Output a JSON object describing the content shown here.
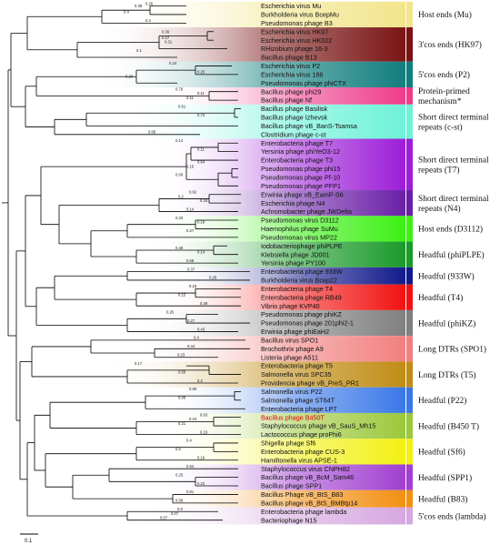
{
  "leaves": [
    {
      "label": "Escherichia virus Mu",
      "color": "#f2e58c"
    },
    {
      "label": "Burkholderia virus BcepMu",
      "color": "#f2e58c"
    },
    {
      "label": "Pseudomonas phage B3",
      "color": "#f2e58c"
    },
    {
      "label": "Escherichia virus HK97",
      "color": "#7a1414"
    },
    {
      "label": "Escherichia virus HK022",
      "color": "#7a1414"
    },
    {
      "label": "RHizobium phage 16-3",
      "color": "#7a1414"
    },
    {
      "label": "Bacillus phage B13",
      "color": "#7a1414"
    },
    {
      "label": "Escherichia virus P2",
      "color": "#117e7e"
    },
    {
      "label": "Escherichia virus 186",
      "color": "#117e7e"
    },
    {
      "label": "Pseudomonas phage phiCTX",
      "color": "#117e7e"
    },
    {
      "label": "Bacillus phage phi29",
      "color": "#ee3c8a"
    },
    {
      "label": "Bacillus phage Nf",
      "color": "#ee3c8a"
    },
    {
      "label": "Bacillus phage Basilisk",
      "color": "#6ef2d8"
    },
    {
      "label": "Bacillus phage Izhevsk",
      "color": "#6ef2d8"
    },
    {
      "label": "Bacillus phage vB_BanS-Tsamsa",
      "color": "#6ef2d8"
    },
    {
      "label": "Clostridium phage c-st",
      "color": "#6ef2d8"
    },
    {
      "label": "Enterobacteria phage T7",
      "color": "#9c1ed8"
    },
    {
      "label": "Yersinia phage phiYeO3-12",
      "color": "#9c1ed8"
    },
    {
      "label": "Enterobacteria phage T3",
      "color": "#9c1ed8"
    },
    {
      "label": "Pseudomonas phage phi15",
      "color": "#9c1ed8"
    },
    {
      "label": "Pseudomonas phage Pf-10",
      "color": "#9c1ed8"
    },
    {
      "label": "Pseudomonas phage PFP1",
      "color": "#9c1ed8"
    },
    {
      "label": "Erwinia phage vB_EamP-S6",
      "color": "#6a1fa6"
    },
    {
      "label": "Escherichia phage N4",
      "color": "#6a1fa6"
    },
    {
      "label": "Achromobacter phage JWDelta",
      "color": "#6a1fa6"
    },
    {
      "label": "Pseudomonas virus D3112",
      "color": "#3cf014"
    },
    {
      "label": "Haemophilus phage SuMu",
      "color": "#3cf014"
    },
    {
      "label": "Pseudomonas virus MP22",
      "color": "#3cf014"
    },
    {
      "label": "Iodobacteriophage phiPLPE",
      "color": "#1a9a2a"
    },
    {
      "label": "Klebsiella phage JD001",
      "color": "#1a9a2a"
    },
    {
      "label": "Yersinia phage PY100",
      "color": "#1a9a2a"
    },
    {
      "label": "Enterobacteria phage 933W",
      "color": "#121a8c"
    },
    {
      "label": "Burkholderia virus Bcep22",
      "color": "#121a8c"
    },
    {
      "label": "Enterobacteria phage T4",
      "color": "#f21212"
    },
    {
      "label": "Enterobacteria phage RB49",
      "color": "#f21212"
    },
    {
      "label": "Vibrio phage KVP40",
      "color": "#f21212"
    },
    {
      "label": "Pseudomonas phage phiKZ",
      "color": "#808080"
    },
    {
      "label": "Pseudomonas phage 201phi2-1",
      "color": "#808080"
    },
    {
      "label": "Erwinia phage phiEaH2",
      "color": "#808080"
    },
    {
      "label": "Bacillus virus SPO1",
      "color": "#f28080"
    },
    {
      "label": "Brochothrix phage A9",
      "color": "#f28080"
    },
    {
      "label": "Listeria phage A511",
      "color": "#f28080"
    },
    {
      "label": "Enterobacteria phage T5",
      "color": "#c08c14"
    },
    {
      "label": "Salmonella virus SPC35",
      "color": "#c08c14"
    },
    {
      "label": "Providencia phage vB_PreS_PR1",
      "color": "#c08c14"
    },
    {
      "label": "Salmonella virus P22",
      "color": "#3a78e8"
    },
    {
      "label": "Salmonella phage ST64T",
      "color": "#3a78e8"
    },
    {
      "label": "Enterobacteria phage LP7",
      "color": "#3a78e8"
    },
    {
      "label": "Bacillus phage B450T",
      "color": "#9cc83c",
      "highlight": true
    },
    {
      "label": "Staphylococcus phage vB_SauS_Mh15",
      "color": "#9cc83c"
    },
    {
      "label": "Lactococcus phage proPhi6",
      "color": "#9cc83c"
    },
    {
      "label": "Shigella phage Sf6",
      "color": "#f2f014"
    },
    {
      "label": "Enterobacteria phage CUS-3",
      "color": "#f2f014"
    },
    {
      "label": "Hamiltonella virus APSE-1",
      "color": "#f2f014"
    },
    {
      "label": "Staphylococcus virus CNPH82",
      "color": "#a040d0"
    },
    {
      "label": "Bacillus phage vB_BcM_Sam46",
      "color": "#a040d0"
    },
    {
      "label": "Bacillus phage SPP1",
      "color": "#a040d0"
    },
    {
      "label": "Bacillus Phage vB_BtS_B83",
      "color": "#f29014"
    },
    {
      "label": "Bacillus phage vB_BtS_BMBtp14",
      "color": "#f29014"
    },
    {
      "label": "Enterobacteria phage lambda",
      "color": "#d6a8e0"
    },
    {
      "label": "Bacteriophage N15",
      "color": "#d6a8e0"
    }
  ],
  "groups": [
    {
      "lines": [
        "Host ends (Mu)"
      ],
      "color": "#f2e58c",
      "rows": [
        0,
        2
      ]
    },
    {
      "lines": [
        "3'cos ends (HK97)"
      ],
      "color": "#7a1414",
      "rows": [
        3,
        6
      ]
    },
    {
      "lines": [
        "5'cos ends (P2)"
      ],
      "color": "#117e7e",
      "rows": [
        7,
        9
      ]
    },
    {
      "lines": [
        "Protein-primed",
        "mechanism*"
      ],
      "color": "#ee3c8a",
      "rows": [
        10,
        11
      ]
    },
    {
      "lines": [
        "Short direct terminal",
        "repeats (c-st)"
      ],
      "color": "#6ef2d8",
      "rows": [
        12,
        15
      ]
    },
    {
      "lines": [
        "Short direct terminal",
        "repeats (T7)"
      ],
      "color": "#9c1ed8",
      "rows": [
        16,
        21
      ]
    },
    {
      "lines": [
        "Short direct terminal",
        "repeats (N4)"
      ],
      "color": "#6a1fa6",
      "rows": [
        22,
        24
      ]
    },
    {
      "lines": [
        "Host ends (D3112)"
      ],
      "color": "#3cf014",
      "rows": [
        25,
        27
      ]
    },
    {
      "lines": [
        "Headful (phiPLPE)"
      ],
      "color": "#1a9a2a",
      "rows": [
        28,
        30
      ]
    },
    {
      "lines": [
        "Headful (933W)"
      ],
      "color": "#121a8c",
      "rows": [
        31,
        32
      ]
    },
    {
      "lines": [
        "Headful (T4)"
      ],
      "color": "#f21212",
      "rows": [
        33,
        35
      ]
    },
    {
      "lines": [
        "Headful (phiKZ)"
      ],
      "color": "#808080",
      "rows": [
        36,
        38
      ]
    },
    {
      "lines": [
        "Long DTRs (SPO1)"
      ],
      "color": "#f28080",
      "rows": [
        39,
        41
      ]
    },
    {
      "lines": [
        "Long DTRs (T5)"
      ],
      "color": "#c08c14",
      "rows": [
        42,
        44
      ]
    },
    {
      "lines": [
        "Headful (P22)"
      ],
      "color": "#3a78e8",
      "rows": [
        45,
        47
      ]
    },
    {
      "lines": [
        "Headful (B450 T)"
      ],
      "color": "#9cc83c",
      "rows": [
        48,
        50
      ]
    },
    {
      "lines": [
        "Headful (Sf6)"
      ],
      "color": "#f2f014",
      "rows": [
        51,
        53
      ]
    },
    {
      "lines": [
        "Headful (SPP1)"
      ],
      "color": "#a040d0",
      "rows": [
        54,
        56
      ]
    },
    {
      "lines": [
        "Headful (B83)"
      ],
      "color": "#f29014",
      "rows": [
        57,
        58
      ]
    },
    {
      "lines": [
        "5'cos ends (lambda)"
      ],
      "color": "#d6a8e0",
      "rows": [
        59,
        60
      ]
    }
  ],
  "scale_bar": {
    "label": "0.1"
  },
  "branch_lengths": [
    {
      "row": 0,
      "value": "0.26"
    },
    {
      "row": 0.3,
      "value": "0.38"
    },
    {
      "row": 1,
      "value": "0.4"
    },
    {
      "row": 2,
      "value": "0.4"
    },
    {
      "row": 3.3,
      "value": "0.36"
    },
    {
      "row": 4.5,
      "value": "0.31"
    },
    {
      "row": 5.5,
      "value": "0.1"
    },
    {
      "row": 4.0,
      "value": "0.27"
    },
    {
      "row": 7,
      "value": "0.24"
    },
    {
      "row": 8,
      "value": "0.25"
    },
    {
      "row": 8.5,
      "value": "0.26"
    },
    {
      "row": 10,
      "value": "0.79"
    },
    {
      "row": 10.5,
      "value": "0.11"
    },
    {
      "row": 11,
      "value": "0.11"
    },
    {
      "row": 12,
      "value": "0.61"
    },
    {
      "row": 13,
      "value": "0.72"
    },
    {
      "row": 15,
      "value": "0.68"
    },
    {
      "row": 16,
      "value": "0.14"
    },
    {
      "row": 17,
      "value": "0.11"
    },
    {
      "row": 19,
      "value": "0.15"
    },
    {
      "row": 20,
      "value": "0.09"
    },
    {
      "row": 18.5,
      "value": "0.64"
    },
    {
      "row": 22,
      "value": "0.62"
    },
    {
      "row": 22.5,
      "value": "0.2"
    },
    {
      "row": 23,
      "value": "0.18"
    },
    {
      "row": 24,
      "value": "0.14"
    },
    {
      "row": 25,
      "value": "0.33"
    },
    {
      "row": 25.5,
      "value": "0.19"
    },
    {
      "row": 26.5,
      "value": "0.27"
    },
    {
      "row": 28.5,
      "value": "0.48"
    },
    {
      "row": 29,
      "value": "0.14"
    },
    {
      "row": 30,
      "value": "0.58"
    },
    {
      "row": 31,
      "value": "0.37"
    },
    {
      "row": 32,
      "value": "0.29"
    },
    {
      "row": 33,
      "value": "0.18"
    },
    {
      "row": 34,
      "value": "0.15"
    },
    {
      "row": 35,
      "value": "0.49"
    },
    {
      "row": 36,
      "value": "0.26"
    },
    {
      "row": 37,
      "value": "0.27"
    },
    {
      "row": 38,
      "value": "0.43"
    },
    {
      "row": 39,
      "value": "0.4"
    },
    {
      "row": 40,
      "value": "0.44"
    },
    {
      "row": 41,
      "value": "0.23"
    },
    {
      "row": 42,
      "value": "0.17"
    },
    {
      "row": 43,
      "value": "0.56"
    },
    {
      "row": 44,
      "value": "0.2"
    },
    {
      "row": 45,
      "value": "0.89"
    },
    {
      "row": 46,
      "value": "0.06"
    },
    {
      "row": 48,
      "value": "0.63"
    },
    {
      "row": 48.5,
      "value": "0.24"
    },
    {
      "row": 49,
      "value": "0.21"
    },
    {
      "row": 50,
      "value": "0.19"
    },
    {
      "row": 51,
      "value": "0.4"
    },
    {
      "row": 52,
      "value": "0.5"
    },
    {
      "row": 53,
      "value": "0.19"
    },
    {
      "row": 54,
      "value": "0.54"
    },
    {
      "row": 55,
      "value": "0.25"
    },
    {
      "row": 56,
      "value": "0.23"
    },
    {
      "row": 57,
      "value": "0.81"
    },
    {
      "row": 58,
      "value": "0.08"
    },
    {
      "row": 59,
      "value": "0.9"
    },
    {
      "row": 59.5,
      "value": "0.07"
    },
    {
      "row": 60,
      "value": "0.07"
    }
  ]
}
